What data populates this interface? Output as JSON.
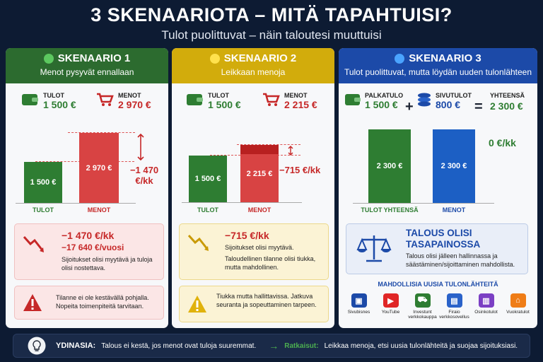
{
  "header": {
    "title": "3 SKENAARIOTA – MITÄ TAPAHTUISI?",
    "subtitle": "Tulot puolittuvat – näin taloutesi muuttuisi"
  },
  "s1": {
    "title": "SKENAARIO 1",
    "subtitle": "Menot pysyvät ennallaan",
    "income_label": "TULOT",
    "income": "1 500 €",
    "expense_label": "MENOT",
    "expense": "2 970 €",
    "bar_income": "1 500 €",
    "bar_expense": "2 970 €",
    "bar_label_income": "TULOT",
    "bar_label_expense": "MENOT",
    "diff": "−1 470 €/kk",
    "box_monthly": "−1 470 €/kk",
    "box_yearly": "−17 640 €/vuosi",
    "box_text": "Sijoitukset olisi myytävä ja tuloja olisi nostettava.",
    "warn": "Tilanne ei ole kestävällä pohjalla. Nopeita toimenpiteitä tarvitaan."
  },
  "s2": {
    "title": "SKENAARIO 2",
    "subtitle": "Leikkaan menoja",
    "income_label": "TULOT",
    "income": "1 500 €",
    "expense_label": "MENOT",
    "expense": "2 215 €",
    "bar_income": "1 500 €",
    "bar_expense": "2 215 €",
    "bar_label_income": "TULOT",
    "bar_label_expense": "MENOT",
    "diff": "−715 €/kk",
    "box_monthly": "−715 €/kk",
    "box_text1": "Sijoitukset olisi myytävä.",
    "box_text2": "Taloudellinen tilanne olisi tiukka, mutta mahdollinen.",
    "warn": "Tiukka mutta hallittavissa. Jatkuva seuranta ja sopeuttaminen tarpeen."
  },
  "s3": {
    "title": "SKENAARIO 3",
    "subtitle": "Tulot puolittuvat, mutta löydän uuden tulonlähteen",
    "salary_label": "PALKATULO",
    "salary": "1 500 €",
    "side_label": "SIVUTULOT",
    "side": "800 €",
    "total_label": "YHTEENSÄ",
    "total": "2 300 €",
    "plus": "+",
    "equals": "=",
    "bar_total": "2 300 €",
    "bar_expense": "2 300 €",
    "bar_label_total": "TULOT YHTEENSÄ",
    "bar_label_expense": "MENOT",
    "diff": "0 €/kk",
    "balance_title": "TALOUS OLISI TASAPAINOSSA",
    "balance_text": "Talous olisi jälleen hallinnassa ja säästäminen/sijoittaminen mahdollista.",
    "sources_title": "MAHDOLLISIA UUSIA TULONLÄHTEITÄ",
    "sources": [
      "Sivubisnes",
      "YouTube",
      "Investunt verkkokauppa",
      "Firaio verkkosovellus",
      "Osinkotulot",
      "Vuokratulot"
    ]
  },
  "footer": {
    "label": "YDINASIA:",
    "text": "Talous ei kestä, jos menot ovat tuloja suuremmat.",
    "arrow": "→",
    "solutions_label": "Ratkaisut:",
    "solutions": "Leikkaa menoja, etsi uusia tulonlähteitä ja suojaa sijoituksiasi."
  },
  "colors": {
    "green": "#2e7d32",
    "red": "#c62828",
    "yellow": "#d2ac0c",
    "blue": "#1c4aa8"
  }
}
